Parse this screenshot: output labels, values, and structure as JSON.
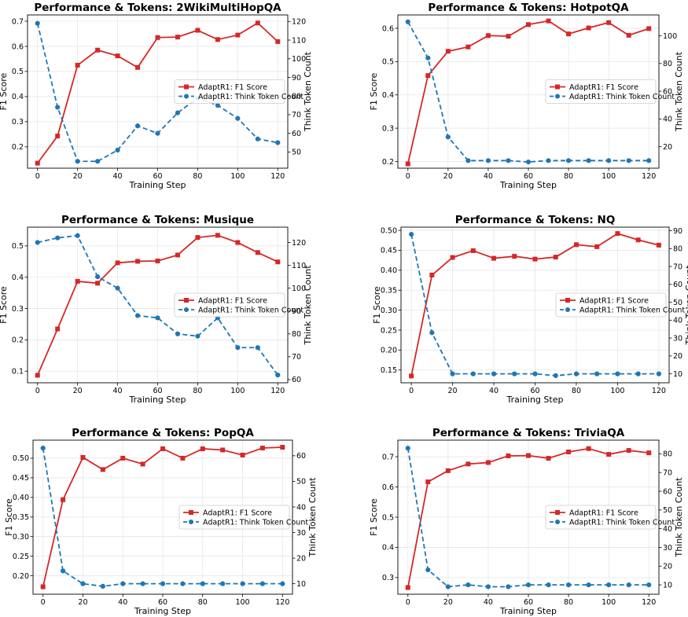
{
  "figure": {
    "colors": {
      "f1": "#d62728",
      "tokens": "#1f77b4",
      "grid": "#e6e6e6"
    }
  },
  "chart_data": [
    {
      "type": "line",
      "title": "Performance & Tokens: 2WikiMultiHopQA",
      "xlabel": "Training Step",
      "ylabel": "F1 Score",
      "y2label": "Think Token Count",
      "x": [
        0,
        10,
        20,
        30,
        40,
        50,
        60,
        70,
        80,
        90,
        100,
        110,
        120
      ],
      "xticks": [
        0,
        20,
        40,
        60,
        80,
        100,
        120
      ],
      "xlim": [
        -5,
        125
      ],
      "ylim": [
        0.115,
        0.725
      ],
      "yticks": [
        0.2,
        0.3,
        0.4,
        0.5,
        0.6,
        0.7
      ],
      "yticklabels": [
        "0.2",
        "0.3",
        "0.4",
        "0.5",
        "0.6",
        "0.7"
      ],
      "y2lim": [
        41.3,
        123.5
      ],
      "y2ticks": [
        50,
        60,
        70,
        80,
        90,
        100,
        110,
        120
      ],
      "y2ticklabels": [
        "50",
        "60",
        "70",
        "80",
        "90",
        "100",
        "110",
        "120"
      ],
      "legend": "center-right",
      "grid": true,
      "series": [
        {
          "name": "AdaptR1: F1 Score",
          "axis": "left",
          "style": "solid-square",
          "values": [
            0.135,
            0.243,
            0.525,
            0.585,
            0.562,
            0.516,
            0.635,
            0.637,
            0.664,
            0.627,
            0.645,
            0.693,
            0.619
          ]
        },
        {
          "name": "AdaptR1: Think Token Count",
          "axis": "right",
          "style": "dashed-circle",
          "values": [
            119,
            74,
            45,
            45,
            51,
            64,
            60,
            71,
            79,
            75,
            68,
            57,
            55
          ]
        }
      ]
    },
    {
      "type": "line",
      "title": "Performance & Tokens: HotpotQA",
      "xlabel": "Training Step",
      "ylabel": "F1 Score",
      "y2label": "Think Token Count",
      "x": [
        0,
        10,
        20,
        30,
        40,
        50,
        60,
        70,
        80,
        90,
        100,
        110,
        120
      ],
      "xticks": [
        0,
        20,
        40,
        60,
        80,
        100,
        120
      ],
      "xlim": [
        -5,
        125
      ],
      "ylim": [
        0.18,
        0.64
      ],
      "yticks": [
        0.2,
        0.3,
        0.4,
        0.5,
        0.6
      ],
      "yticklabels": [
        "0.2",
        "0.3",
        "0.4",
        "0.5",
        "0.6"
      ],
      "y2lim": [
        4.5,
        115
      ],
      "y2ticks": [
        20,
        40,
        60,
        80,
        100
      ],
      "y2ticklabels": [
        "20",
        "40",
        "60",
        "80",
        "100"
      ],
      "legend": "center-right",
      "grid": true,
      "series": [
        {
          "name": "AdaptR1: F1 Score",
          "axis": "left",
          "style": "solid-square",
          "values": [
            0.193,
            0.458,
            0.531,
            0.544,
            0.578,
            0.576,
            0.611,
            0.622,
            0.583,
            0.601,
            0.617,
            0.579,
            0.599
          ]
        },
        {
          "name": "AdaptR1: Think Token Count",
          "axis": "right",
          "style": "dashed-circle",
          "values": [
            110,
            84,
            27,
            10,
            10,
            10,
            9,
            10,
            10,
            10,
            10,
            10,
            10
          ]
        }
      ]
    },
    {
      "type": "line",
      "title": "Performance & Tokens: Musique",
      "xlabel": "Training Step",
      "ylabel": "F1 Score",
      "y2label": "Think Token Count",
      "x": [
        0,
        10,
        20,
        30,
        40,
        50,
        60,
        70,
        80,
        90,
        100,
        110,
        120
      ],
      "xticks": [
        0,
        20,
        40,
        60,
        80,
        100,
        120
      ],
      "xlim": [
        -5,
        125
      ],
      "ylim": [
        0.063,
        0.56
      ],
      "yticks": [
        0.1,
        0.2,
        0.3,
        0.4,
        0.5
      ],
      "yticklabels": [
        "0.1",
        "0.2",
        "0.3",
        "0.4",
        "0.5"
      ],
      "y2lim": [
        58.6,
        126.7
      ],
      "y2ticks": [
        60,
        70,
        80,
        90,
        100,
        110,
        120
      ],
      "y2ticklabels": [
        "60",
        "70",
        "80",
        "90",
        "100",
        "110",
        "120"
      ],
      "legend": "center-right",
      "grid": true,
      "series": [
        {
          "name": "AdaptR1: F1 Score",
          "axis": "left",
          "style": "solid-square",
          "values": [
            0.087,
            0.235,
            0.387,
            0.381,
            0.446,
            0.451,
            0.452,
            0.471,
            0.527,
            0.534,
            0.511,
            0.479,
            0.449
          ]
        },
        {
          "name": "AdaptR1: Think Token Count",
          "axis": "right",
          "style": "dashed-circle",
          "values": [
            120,
            122,
            123,
            105,
            100,
            88,
            87,
            80,
            79,
            87,
            74,
            74,
            62
          ]
        }
      ]
    },
    {
      "type": "line",
      "title": "Performance & Tokens: NQ",
      "xlabel": "Training Step",
      "ylabel": "F1 Score",
      "y2label": "Think Token Count",
      "x": [
        0,
        10,
        20,
        30,
        40,
        50,
        60,
        70,
        80,
        90,
        100,
        110,
        120
      ],
      "xticks": [
        0,
        20,
        40,
        60,
        80,
        100,
        120
      ],
      "xlim": [
        -5,
        125
      ],
      "ylim": [
        0.118,
        0.508
      ],
      "yticks": [
        0.15,
        0.2,
        0.25,
        0.3,
        0.35,
        0.4,
        0.45,
        0.5
      ],
      "yticklabels": [
        "0.15",
        "0.20",
        "0.25",
        "0.30",
        "0.35",
        "0.40",
        "0.45",
        "0.50"
      ],
      "y2lim": [
        5,
        92
      ],
      "y2ticks": [
        10,
        20,
        30,
        40,
        50,
        60,
        70,
        80,
        90
      ],
      "y2ticklabels": [
        "10",
        "20",
        "30",
        "40",
        "50",
        "60",
        "70",
        "80",
        "90"
      ],
      "legend": "center-right",
      "grid": true,
      "series": [
        {
          "name": "AdaptR1: F1 Score",
          "axis": "left",
          "style": "solid-square",
          "values": [
            0.135,
            0.388,
            0.432,
            0.449,
            0.43,
            0.435,
            0.428,
            0.433,
            0.464,
            0.459,
            0.492,
            0.476,
            0.463
          ]
        },
        {
          "name": "AdaptR1: Think Token Count",
          "axis": "right",
          "style": "dashed-circle",
          "values": [
            88,
            33,
            10,
            10,
            10,
            10,
            10,
            9,
            10,
            10,
            10,
            10,
            10
          ]
        }
      ]
    },
    {
      "type": "line",
      "title": "Performance & Tokens: PopQA",
      "xlabel": "Training Step",
      "ylabel": "F1 Score",
      "y2label": "Think Token Count",
      "x": [
        0,
        10,
        20,
        30,
        40,
        50,
        60,
        70,
        80,
        90,
        100,
        110,
        120
      ],
      "xticks": [
        0,
        20,
        40,
        60,
        80,
        100,
        120
      ],
      "xlim": [
        -5,
        125
      ],
      "ylim": [
        0.153,
        0.546
      ],
      "yticks": [
        0.2,
        0.25,
        0.3,
        0.35,
        0.4,
        0.45,
        0.5
      ],
      "yticklabels": [
        "0.20",
        "0.25",
        "0.30",
        "0.35",
        "0.40",
        "0.45",
        "0.50"
      ],
      "y2lim": [
        5.9,
        66.1
      ],
      "y2ticks": [
        10,
        20,
        30,
        40,
        50,
        60
      ],
      "y2ticklabels": [
        "10",
        "20",
        "30",
        "40",
        "50",
        "60"
      ],
      "legend": "center-right",
      "grid": true,
      "series": [
        {
          "name": "AdaptR1: F1 Score",
          "axis": "left",
          "style": "solid-square",
          "values": [
            0.172,
            0.394,
            0.502,
            0.471,
            0.5,
            0.485,
            0.524,
            0.5,
            0.524,
            0.521,
            0.508,
            0.526,
            0.528
          ]
        },
        {
          "name": "AdaptR1: Think Token Count",
          "axis": "right",
          "style": "dashed-circle",
          "values": [
            63,
            15,
            10,
            9,
            10,
            10,
            10,
            10,
            10,
            10,
            10,
            10,
            10
          ]
        }
      ]
    },
    {
      "type": "line",
      "title": "Performance & Tokens: TriviaQA",
      "xlabel": "Training Step",
      "ylabel": "F1 Score",
      "y2label": "Think Token Count",
      "x": [
        0,
        10,
        20,
        30,
        40,
        50,
        60,
        70,
        80,
        90,
        100,
        110,
        120
      ],
      "xticks": [
        0,
        20,
        40,
        60,
        80,
        100,
        120
      ],
      "xlim": [
        -5,
        125
      ],
      "ylim": [
        0.245,
        0.755
      ],
      "yticks": [
        0.3,
        0.4,
        0.5,
        0.6,
        0.7
      ],
      "yticklabels": [
        "0.3",
        "0.4",
        "0.5",
        "0.6",
        "0.7"
      ],
      "y2lim": [
        5.0,
        87.3
      ],
      "y2ticks": [
        10,
        20,
        30,
        40,
        50,
        60,
        70,
        80
      ],
      "y2ticklabels": [
        "10",
        "20",
        "30",
        "40",
        "50",
        "60",
        "70",
        "80"
      ],
      "legend": "center-right",
      "grid": true,
      "series": [
        {
          "name": "AdaptR1: F1 Score",
          "axis": "left",
          "style": "solid-square",
          "values": [
            0.267,
            0.617,
            0.654,
            0.676,
            0.681,
            0.703,
            0.704,
            0.695,
            0.716,
            0.727,
            0.708,
            0.721,
            0.713
          ]
        },
        {
          "name": "AdaptR1: Think Token Count",
          "axis": "right",
          "style": "dashed-circle",
          "values": [
            83,
            18,
            9,
            10,
            9,
            9,
            10,
            10,
            10,
            10,
            10,
            10,
            10
          ]
        }
      ]
    }
  ]
}
